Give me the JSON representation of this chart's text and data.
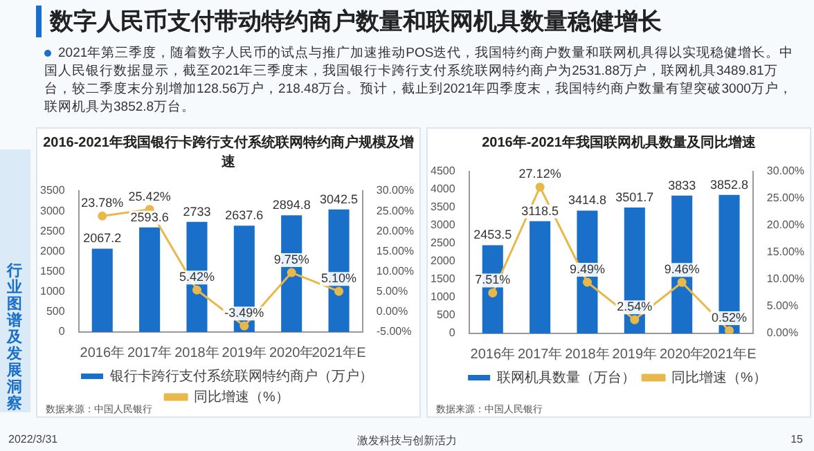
{
  "chart_data": [
    {
      "type": "other",
      "title": "数字人民币支付带动特约商户数量和联网机具数量稳健增长",
      "annotations": [
        "2021年第三季度，随着数字人民币的试点与推广加速推动POS迭代，我国特约商户数量和联网机具得以实现稳健增长。中国人民银行数据显示，截至2021年三季度末，我国银行卡跨行支付系统联网特约商户为2531.88万户，联网机具3489.81万台，较二季度末分别增加128.56万户，218.48万台。预计，截止到2021年四季度末，我国特约商户数量有望突破3000万户，联网机具为3852.8万台。",
        "行业图谱及发展洞察",
        "2022/3/31",
        "激发科技与创新活力",
        "15"
      ]
    },
    {
      "type": "bar",
      "title": "2016-2021年我国银行卡跨行支付系统联网特约商户规模及增速",
      "categories": [
        "2016年",
        "2017年",
        "2018年",
        "2019年",
        "2020年",
        "2021年E"
      ],
      "series": [
        {
          "name": "银行卡跨行支付系统联网特约商户（万户）",
          "type": "bar",
          "color": "#1a6fc9",
          "values": [
            2067.2,
            2593.6,
            2733,
            2637.6,
            2894.8,
            3042.5
          ],
          "value_labels": [
            "2067.2",
            "2593.6",
            "2733",
            "2637.6",
            "2894.8",
            "3042.5"
          ]
        },
        {
          "name": "同比增速（%）",
          "type": "line",
          "axis": "y2",
          "color": "#e8b84a",
          "values": [
            23.78,
            25.42,
            5.42,
            -3.49,
            9.75,
            5.1
          ],
          "value_labels": [
            "23.78%",
            "25.42%",
            "5.42%",
            "-3.49%",
            "9.75%",
            "5.10%"
          ]
        }
      ],
      "ylim": [
        0,
        3500
      ],
      "yticks": [
        0,
        500,
        1000,
        1500,
        2000,
        2500,
        3000,
        3500
      ],
      "y2lim": [
        -5,
        30
      ],
      "y2ticks": [
        {
          "value": -5,
          "label": "-5.00%"
        },
        {
          "value": 0,
          "label": "0.00%"
        },
        {
          "value": 5,
          "label": "5.00%"
        },
        {
          "value": 10,
          "label": "10.00%"
        },
        {
          "value": 15,
          "label": "15.00%"
        },
        {
          "value": 20,
          "label": "20.00%"
        },
        {
          "value": 25,
          "label": "25.00%"
        },
        {
          "value": 30,
          "label": "30.00%"
        }
      ],
      "legend": "bottom",
      "marker": "circle",
      "annotations": [
        "数据来源：中国人民银行"
      ]
    },
    {
      "type": "bar",
      "title": "2016年-2021年我国联网机具数量及同比增速",
      "categories": [
        "2016年",
        "2017年",
        "2018年",
        "2019年",
        "2020年",
        "2021年E"
      ],
      "series": [
        {
          "name": "联网机具数量（万台）",
          "type": "bar",
          "color": "#1a6fc9",
          "values": [
            2453.5,
            3118.5,
            3414.8,
            3501.7,
            3833,
            3852.8
          ],
          "value_labels": [
            "2453.5",
            "3118.5",
            "3414.8",
            "3501.7",
            "3833",
            "3852.8"
          ]
        },
        {
          "name": "同比增速（%）",
          "type": "line",
          "axis": "y2",
          "color": "#e8b84a",
          "values": [
            7.51,
            27.12,
            9.49,
            2.54,
            9.46,
            0.52
          ],
          "value_labels": [
            "7.51%",
            "27.12%",
            "9.49%",
            "2.54%",
            "9.46%",
            "0.52%"
          ]
        }
      ],
      "ylim": [
        0,
        4500
      ],
      "yticks": [
        0,
        500,
        1000,
        1500,
        2000,
        2500,
        3000,
        3500,
        4000,
        4500
      ],
      "y2lim": [
        0,
        30
      ],
      "y2ticks": [
        {
          "value": 0,
          "label": "0.00%"
        },
        {
          "value": 5,
          "label": "5.00%"
        },
        {
          "value": 10,
          "label": "10.00%"
        },
        {
          "value": 15,
          "label": "15.00%"
        },
        {
          "value": 20,
          "label": "20.00%"
        },
        {
          "value": 25,
          "label": "25.00%"
        },
        {
          "value": 30,
          "label": "30.00%"
        }
      ],
      "legend": "bottom",
      "marker": "circle",
      "annotations": [
        "数据来源：中国人民银行"
      ]
    }
  ]
}
